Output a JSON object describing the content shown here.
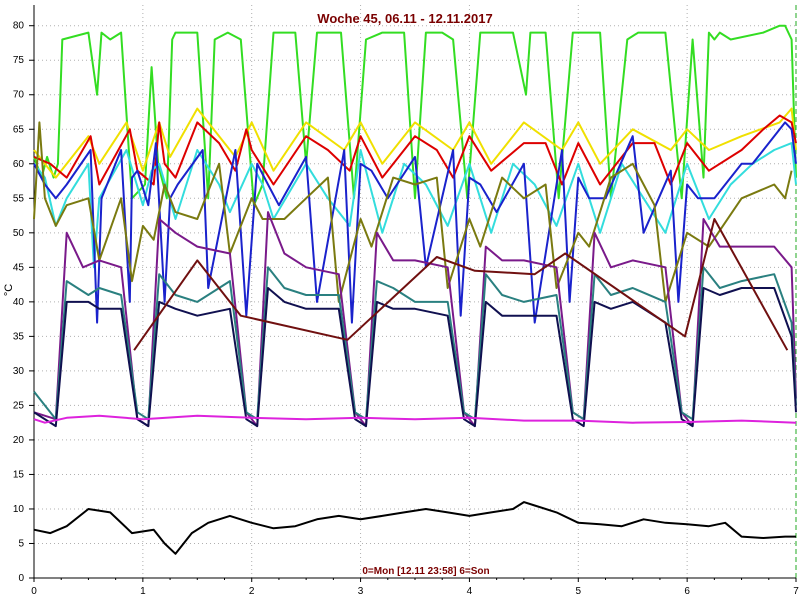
{
  "chart_data": {
    "type": "line",
    "title": "Woche 45, 06.11 - 12.11.2017",
    "ylabel": "°C",
    "xlabel": "0=Mon [12.11 23:58] 6=Son",
    "xlim": [
      0,
      7
    ],
    "ylim": [
      0,
      83
    ],
    "x_ticks": [
      "0",
      "1",
      "2",
      "3",
      "4",
      "5",
      "6",
      "7"
    ],
    "y_ticks": [
      "0",
      "5",
      "10",
      "15",
      "20",
      "25",
      "30",
      "35",
      "40",
      "45",
      "50",
      "55",
      "60",
      "65",
      "70",
      "75",
      "80"
    ],
    "grid": true,
    "series": [
      {
        "color": "#33dd22",
        "x": [
          0,
          0.07,
          0.12,
          0.18,
          0.22,
          0.26,
          0.5,
          0.58,
          0.62,
          0.7,
          0.8,
          0.9,
          1.02,
          1.08,
          1.14,
          1.22,
          1.27,
          1.3,
          1.35,
          1.5,
          1.6,
          1.66,
          1.78,
          1.9,
          2.02,
          2.1,
          2.2,
          2.3,
          2.4,
          2.5,
          2.6,
          2.7,
          2.82,
          2.94,
          3.05,
          3.2,
          3.3,
          3.4,
          3.5,
          3.6,
          3.75,
          3.85,
          3.98,
          4.1,
          4.2,
          4.3,
          4.4,
          4.52,
          4.56,
          4.62,
          4.7,
          4.82,
          4.95,
          5.05,
          5.2,
          5.3,
          5.45,
          5.55,
          5.68,
          5.8,
          5.95,
          6.05,
          6.15,
          6.2,
          6.25,
          6.3,
          6.4,
          6.7,
          6.85,
          6.9,
          6.96,
          7
        ],
        "y": [
          61,
          58,
          61,
          58,
          60,
          78,
          79,
          70,
          79,
          78,
          79,
          55,
          57,
          74,
          60,
          55,
          78,
          79,
          79,
          79,
          55,
          78,
          79,
          78,
          54,
          57,
          79,
          79,
          79,
          60,
          79,
          79,
          79,
          55,
          78,
          79,
          79,
          79,
          55,
          79,
          79,
          78,
          55,
          79,
          79,
          79,
          79,
          70,
          79,
          79,
          79,
          55,
          79,
          79,
          79,
          55,
          78,
          79,
          79,
          79,
          55,
          78,
          58,
          79,
          78,
          79,
          78,
          79,
          80,
          80,
          78,
          58
        ]
      },
      {
        "color": "#f0e000",
        "x": [
          0,
          0.2,
          0.5,
          0.6,
          0.85,
          1,
          1.15,
          1.25,
          1.5,
          1.85,
          2,
          2.2,
          2.5,
          2.85,
          3,
          3.2,
          3.5,
          3.85,
          4,
          4.2,
          4.5,
          4.85,
          5,
          5.2,
          5.5,
          5.85,
          6,
          6.2,
          6.5,
          6.85,
          6.96,
          7
        ],
        "y": [
          62,
          58,
          64,
          60,
          66,
          59,
          66,
          61,
          68,
          61,
          66,
          59,
          66,
          62,
          66,
          60,
          66,
          62,
          66,
          60,
          66,
          62,
          66,
          60,
          65,
          62,
          65,
          62,
          64,
          66,
          68,
          62
        ]
      },
      {
        "color": "#dd0000",
        "x": [
          0,
          0.15,
          0.3,
          0.52,
          0.6,
          0.88,
          0.95,
          1.1,
          1.15,
          1.2,
          1.3,
          1.5,
          1.7,
          1.85,
          1.95,
          2,
          2.2,
          2.5,
          2.7,
          2.9,
          3,
          3.2,
          3.5,
          3.7,
          3.85,
          4,
          4.2,
          4.5,
          4.7,
          4.85,
          5,
          5.2,
          5.5,
          5.7,
          5.85,
          6,
          6.2,
          6.5,
          6.7,
          6.85,
          6.96,
          7
        ],
        "y": [
          61,
          60,
          58,
          64,
          57,
          65,
          59,
          57,
          66,
          60,
          58,
          66,
          63,
          59,
          65,
          62,
          57,
          64,
          62,
          59,
          64,
          58,
          64,
          62,
          58,
          64,
          59,
          63,
          63,
          57,
          63,
          57,
          63,
          63,
          57,
          63,
          59,
          62,
          65,
          67,
          66,
          63
        ]
      },
      {
        "color": "#33dddd",
        "x": [
          0,
          0.1,
          0.2,
          0.3,
          0.5,
          0.55,
          0.6,
          0.85,
          1,
          1.08,
          1.15,
          1.3,
          1.5,
          1.7,
          1.8,
          2,
          2.1,
          2.2,
          2.5,
          2.7,
          2.9,
          3,
          3.2,
          3.4,
          3.6,
          3.8,
          4,
          4.2,
          4.4,
          4.6,
          4.8,
          5,
          5.2,
          5.4,
          5.6,
          5.8,
          6,
          6.2,
          6.4,
          6.6,
          6.8,
          6.96,
          7
        ],
        "y": [
          60,
          58,
          51,
          55,
          60,
          45,
          55,
          62,
          54,
          59,
          60,
          52,
          62,
          57,
          53,
          60,
          57,
          52,
          60,
          55,
          51,
          62,
          50,
          60,
          57,
          51,
          60,
          50,
          60,
          57,
          51,
          60,
          50,
          60,
          55,
          50,
          60,
          52,
          57,
          60,
          62,
          63,
          57
        ]
      },
      {
        "color": "#1a22cc",
        "x": [
          0,
          0.1,
          0.2,
          0.3,
          0.52,
          0.58,
          0.62,
          0.8,
          0.88,
          0.9,
          0.95,
          1.05,
          1.12,
          1.2,
          1.25,
          1.32,
          1.55,
          1.6,
          1.85,
          1.95,
          2.05,
          2.15,
          2.25,
          2.5,
          2.6,
          2.85,
          2.92,
          3,
          3.1,
          3.25,
          3.5,
          3.6,
          3.85,
          3.92,
          4,
          4.1,
          4.25,
          4.5,
          4.6,
          4.85,
          4.92,
          5,
          5.1,
          5.25,
          5.5,
          5.6,
          5.85,
          5.92,
          6,
          6.1,
          6.25,
          6.5,
          6.6,
          6.9,
          6.96,
          7
        ],
        "y": [
          60,
          57,
          55,
          57,
          62,
          37,
          55,
          62,
          40,
          58,
          59,
          54,
          63,
          40,
          55,
          57,
          62,
          42,
          62,
          38,
          60,
          57,
          54,
          61,
          40,
          62,
          37,
          60,
          59,
          55,
          61,
          45,
          62,
          38,
          58,
          57,
          53,
          60,
          37,
          62,
          40,
          58,
          55,
          55,
          64,
          50,
          59,
          40,
          57,
          55,
          55,
          60,
          60,
          66,
          65,
          60
        ]
      },
      {
        "color": "#7a7a10",
        "x": [
          0,
          0.05,
          0.1,
          0.2,
          0.3,
          0.5,
          0.6,
          0.8,
          0.9,
          1,
          1.1,
          1.2,
          1.3,
          1.5,
          1.7,
          1.8,
          2,
          2.1,
          2.3,
          2.5,
          2.7,
          2.8,
          3,
          3.1,
          3.3,
          3.5,
          3.7,
          3.8,
          4,
          4.1,
          4.3,
          4.5,
          4.7,
          4.8,
          5,
          5.1,
          5.3,
          5.5,
          5.7,
          5.8,
          6,
          6.2,
          6.5,
          6.8,
          6.9,
          6.96
        ],
        "y": [
          52,
          66,
          55,
          51,
          54,
          55,
          46,
          55,
          43,
          51,
          49,
          57,
          53,
          52,
          60,
          47,
          55,
          52,
          52,
          55,
          58,
          40,
          52,
          48,
          58,
          57,
          58,
          42,
          52,
          48,
          58,
          55,
          57,
          42,
          50,
          48,
          58,
          60,
          54,
          40,
          50,
          48,
          55,
          57,
          55,
          59
        ]
      },
      {
        "color": "#7a1a8a",
        "x": [
          0,
          0.2,
          0.3,
          0.45,
          0.6,
          0.8,
          0.95,
          1.05,
          1.15,
          1.3,
          1.5,
          1.8,
          1.95,
          2.05,
          2.15,
          2.3,
          2.5,
          2.8,
          2.95,
          3.05,
          3.15,
          3.3,
          3.5,
          3.8,
          3.95,
          4.05,
          4.15,
          4.3,
          4.5,
          4.8,
          4.95,
          5.05,
          5.15,
          5.3,
          5.5,
          5.8,
          5.95,
          6.05,
          6.15,
          6.3,
          6.5,
          6.8,
          6.96,
          7
        ],
        "y": [
          24,
          23,
          50,
          45,
          46,
          45,
          23,
          22,
          52,
          50,
          48,
          47,
          24,
          22,
          53,
          47,
          45,
          44,
          24,
          22,
          50,
          46,
          46,
          45,
          24,
          22,
          48,
          46,
          46,
          45,
          24,
          23,
          50,
          45,
          46,
          45,
          24,
          22,
          52,
          48,
          48,
          48,
          45,
          26
        ]
      },
      {
        "color": "#2a8080",
        "x": [
          0,
          0.2,
          0.3,
          0.5,
          0.6,
          0.8,
          0.95,
          1.05,
          1.15,
          1.3,
          1.5,
          1.8,
          1.95,
          2.05,
          2.15,
          2.3,
          2.5,
          2.8,
          2.95,
          3.05,
          3.15,
          3.3,
          3.5,
          3.8,
          3.95,
          4.05,
          4.15,
          4.3,
          4.5,
          4.8,
          4.95,
          5.05,
          5.15,
          5.3,
          5.5,
          5.8,
          5.95,
          6.05,
          6.15,
          6.3,
          6.5,
          6.8,
          6.96,
          7
        ],
        "y": [
          27,
          23,
          43,
          41,
          42,
          41,
          24,
          23,
          44,
          41,
          40,
          43,
          24,
          23,
          45,
          42,
          41,
          41,
          24,
          23,
          43,
          42,
          40,
          40,
          24,
          23,
          44,
          41,
          40,
          41,
          24,
          23,
          44,
          41,
          42,
          40,
          24,
          23,
          45,
          42,
          43,
          44,
          37,
          25
        ]
      },
      {
        "color": "#101050",
        "x": [
          0,
          0.2,
          0.3,
          0.5,
          0.6,
          0.8,
          0.95,
          1.05,
          1.15,
          1.3,
          1.5,
          1.8,
          1.95,
          2.05,
          2.15,
          2.3,
          2.5,
          2.8,
          2.95,
          3.05,
          3.15,
          3.3,
          3.5,
          3.8,
          3.95,
          4.05,
          4.15,
          4.3,
          4.5,
          4.8,
          4.95,
          5.05,
          5.15,
          5.3,
          5.5,
          5.8,
          5.95,
          6.05,
          6.15,
          6.3,
          6.5,
          6.8,
          6.96,
          7
        ],
        "y": [
          24,
          22,
          40,
          40,
          39,
          39,
          23,
          22,
          40,
          39,
          38,
          39,
          23,
          22,
          42,
          40,
          39,
          39,
          23,
          22,
          40,
          39,
          39,
          38,
          23,
          22,
          40,
          38,
          38,
          38,
          23,
          22,
          40,
          39,
          40,
          37,
          23,
          22,
          42,
          41,
          42,
          42,
          35,
          24
        ]
      },
      {
        "color": "#701010",
        "x": [
          0.92,
          1.5,
          1.9,
          2.88,
          3.7,
          4.05,
          4.6,
          4.88,
          5.98,
          6.25,
          6.92
        ],
        "y": [
          33,
          46,
          38,
          34.5,
          46.5,
          44.5,
          44,
          47,
          35,
          52,
          33
        ]
      },
      {
        "color": "#dd22dd",
        "x": [
          0,
          0.1,
          0.3,
          0.6,
          1,
          1.5,
          2,
          2.5,
          3,
          3.5,
          4,
          4.5,
          5,
          5.5,
          6,
          6.5,
          7
        ],
        "y": [
          23,
          22.5,
          23.2,
          23.5,
          23,
          23.5,
          23.2,
          23,
          23.2,
          23,
          23.2,
          22.8,
          22.8,
          22.5,
          22.6,
          22.8,
          22.5
        ]
      },
      {
        "color": "#000000",
        "x": [
          0,
          0.15,
          0.3,
          0.5,
          0.7,
          0.9,
          1.1,
          1.2,
          1.3,
          1.45,
          1.6,
          1.8,
          2,
          2.2,
          2.4,
          2.6,
          2.8,
          3,
          3.2,
          3.4,
          3.6,
          3.8,
          4,
          4.2,
          4.4,
          4.5,
          4.6,
          4.8,
          5,
          5.2,
          5.4,
          5.6,
          5.8,
          6,
          6.2,
          6.35,
          6.5,
          6.7,
          6.9,
          7
        ],
        "y": [
          7,
          6.5,
          7.5,
          10,
          9.5,
          6.5,
          7,
          5,
          3.5,
          6.5,
          8,
          9,
          8,
          7.2,
          7.5,
          8.5,
          9,
          8.5,
          9,
          9.5,
          10,
          9.5,
          9,
          9.5,
          10,
          11,
          10.5,
          9.5,
          8,
          7.8,
          7.5,
          8.5,
          8,
          7.8,
          7.5,
          8,
          6,
          5.8,
          6,
          6
        ]
      }
    ]
  }
}
